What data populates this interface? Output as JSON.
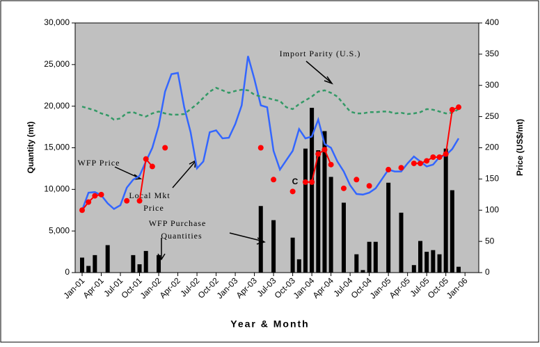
{
  "chart_data": {
    "type": "bar-line",
    "x_label": "Year & Month",
    "y_label": "Quantity (mt)",
    "y2_label": "Price (US$/mt)",
    "categories": [
      "Jan-01",
      null,
      null,
      "Apr-01",
      null,
      null,
      "Jul-01",
      null,
      null,
      "Oct-01",
      null,
      null,
      "Jan-02",
      null,
      null,
      "Apr-02",
      null,
      null,
      "Jul-02",
      null,
      null,
      "Oct-02",
      null,
      null,
      "Jan-03",
      null,
      null,
      "Apr-03",
      null,
      null,
      "Jul-03",
      null,
      null,
      "Oct-03",
      null,
      null,
      "Jan-04",
      null,
      null,
      "Apr-04",
      null,
      null,
      "Jul-04",
      null,
      null,
      "Oct-04",
      null,
      null,
      "Jan-05",
      null,
      null,
      "Apr-05",
      null,
      null,
      "Jul-05",
      null,
      null,
      "Oct-05",
      null,
      null,
      "Jan-06",
      null
    ],
    "ylim": [
      0,
      30000
    ],
    "yticks": [
      0,
      {
        "value": 5000,
        "label": "5,000"
      },
      {
        "value": 10000,
        "label": "10,000"
      },
      {
        "value": 15000,
        "label": "15,000"
      },
      {
        "value": 20000,
        "label": "20,000"
      },
      {
        "value": 25000,
        "label": "25,000"
      },
      {
        "value": 30000,
        "label": "30,000"
      }
    ],
    "y2lim": [
      0,
      400
    ],
    "y2ticks": [
      0,
      50,
      100,
      150,
      200,
      250,
      300,
      350,
      400
    ],
    "series": [
      {
        "name": "WFP Purchase Quantities",
        "kind": "bar",
        "color": "#000000",
        "values": [
          1800,
          800,
          2100,
          0,
          3300,
          0,
          0,
          0,
          2100,
          1000,
          2600,
          0,
          2100,
          0,
          0,
          0,
          0,
          0,
          0,
          0,
          0,
          0,
          0,
          0,
          0,
          0,
          0,
          0,
          8000,
          0,
          6300,
          0,
          0,
          4200,
          1600,
          14900,
          19800,
          14700,
          17000,
          11500,
          0,
          8400,
          0,
          2200,
          300,
          3700,
          3700,
          0,
          10800,
          0,
          7200,
          0,
          900,
          3800,
          2500,
          2700,
          2200,
          14900,
          9900,
          700,
          0,
          0
        ]
      },
      {
        "name": "Local Mkt Price",
        "kind": "line",
        "axis": "y2",
        "color": "#3366ff",
        "values": [
          100,
          128,
          129,
          124,
          111,
          102,
          108,
          136,
          149,
          155,
          178,
          200,
          235,
          290,
          318,
          320,
          265,
          225,
          167,
          178,
          225,
          228,
          215,
          216,
          238,
          268,
          347,
          310,
          268,
          265,
          195,
          165,
          180,
          195,
          230,
          215,
          218,
          245,
          206,
          200,
          178,
          162,
          140,
          126,
          125,
          128,
          135,
          150,
          165,
          162,
          162,
          175,
          186,
          178,
          170,
          173,
          185,
          188,
          198,
          215,
          null,
          null
        ]
      },
      {
        "name": "Import Parity (U.S.)",
        "kind": "dashed",
        "axis": "y2",
        "color": "#339966",
        "values": [
          266,
          263,
          260,
          255,
          252,
          245,
          247,
          256,
          257,
          253,
          250,
          255,
          258,
          255,
          253,
          253,
          254,
          262,
          270,
          280,
          290,
          296,
          292,
          288,
          291,
          293,
          292,
          285,
          282,
          280,
          277,
          275,
          265,
          262,
          270,
          276,
          282,
          290,
          292,
          288,
          282,
          270,
          258,
          255,
          255,
          257,
          257,
          258,
          258,
          255,
          256,
          254,
          255,
          257,
          262,
          261,
          258,
          255,
          256,
          262,
          null,
          null
        ]
      },
      {
        "name": "WFP Price",
        "kind": "dots",
        "axis": "y2",
        "color": "#ff0000",
        "values": [
          100,
          113,
          123,
          125,
          null,
          null,
          null,
          115,
          null,
          115,
          182,
          170,
          null,
          200,
          null,
          null,
          null,
          null,
          null,
          null,
          null,
          null,
          null,
          null,
          null,
          null,
          null,
          null,
          200,
          null,
          149,
          null,
          null,
          130,
          null,
          145,
          145,
          190,
          197,
          173,
          null,
          135,
          null,
          149,
          null,
          139,
          null,
          null,
          165,
          null,
          168,
          null,
          175,
          175,
          179,
          185,
          185,
          190,
          261,
          265,
          null,
          null
        ]
      }
    ],
    "annotations": [
      {
        "lines": [
          "Import Parity (U.S.)"
        ]
      },
      {
        "lines": [
          "WFP Price"
        ]
      },
      {
        "lines": [
          "Local Mkt",
          "Price"
        ]
      },
      {
        "lines": [
          "WFP Purchase",
          "Quantities"
        ]
      },
      {
        "lines": [
          "C"
        ]
      }
    ]
  }
}
